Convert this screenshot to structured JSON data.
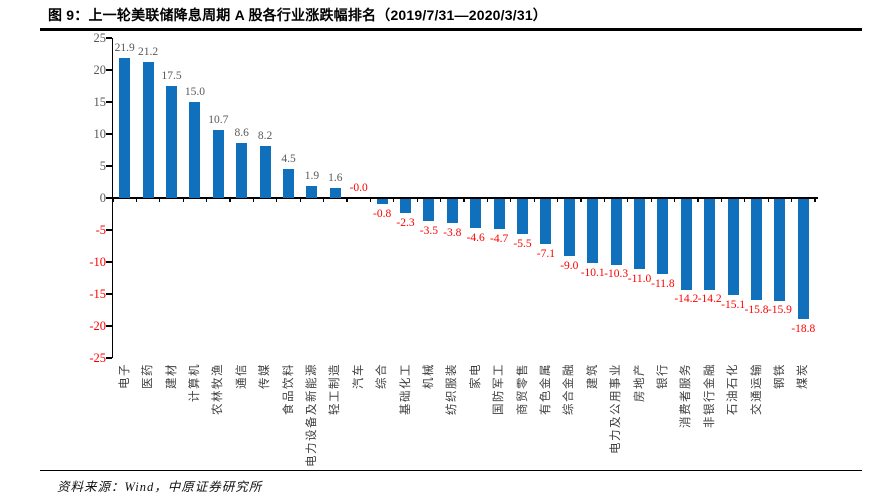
{
  "figure": {
    "number_title": "图 9：上一轮美联储降息周期 A 股各行业涨跌幅排名（2019/7/31—2020/3/31）",
    "source": "资料来源：Wind，中原证券研究所"
  },
  "colors": {
    "bar": "#1070BC",
    "negative_text": "#FF0000",
    "positive_text": "#595959",
    "category_text": "#3F3F3F",
    "axis": "#000000"
  },
  "chart_data": {
    "type": "bar",
    "title": "上一轮美联储降息周期A股各行业涨跌幅排名（2019/7/31—2020/3/31）",
    "xlabel": "",
    "ylabel": "",
    "ylim": [
      -25,
      25
    ],
    "ytick_step": 5,
    "grid": false,
    "legend": false,
    "categories": [
      "电子",
      "医药",
      "建材",
      "计算机",
      "农林牧渔",
      "通信",
      "传媒",
      "食品饮料",
      "电力设备及新能源",
      "轻工制造",
      "汽车",
      "综合",
      "基础化工",
      "机械",
      "纺织服装",
      "家电",
      "国防军工",
      "商贸零售",
      "有色金属",
      "综合金融",
      "建筑",
      "电力及公用事业",
      "房地产",
      "银行",
      "消费者服务",
      "非银行金融",
      "石油石化",
      "交通运输",
      "钢铁",
      "煤炭"
    ],
    "values": [
      21.9,
      21.2,
      17.5,
      15.0,
      10.7,
      8.6,
      8.2,
      4.5,
      1.9,
      1.6,
      -0.0,
      -0.8,
      -2.3,
      -3.5,
      -3.8,
      -4.6,
      -4.7,
      -5.5,
      -7.1,
      -9.0,
      -10.1,
      -10.3,
      -11.0,
      -11.8,
      -14.2,
      -14.2,
      -15.1,
      -15.8,
      -15.9,
      -18.8
    ],
    "labels": [
      "21.9",
      "21.2",
      "17.5",
      "15.0",
      "10.7",
      "8.6",
      "8.2",
      "4.5",
      "1.9",
      "1.6",
      "-0.0",
      "-0.8",
      "-2.3",
      "-3.5",
      "-3.8",
      "-4.6",
      "-4.7",
      "-5.5",
      "-7.1",
      "-9.0",
      "-10.1",
      "-10.3",
      "-11.0",
      "-11.8",
      "-14.2",
      "-14.2",
      "-15.1",
      "-15.8",
      "-15.9",
      "-18.8"
    ]
  }
}
